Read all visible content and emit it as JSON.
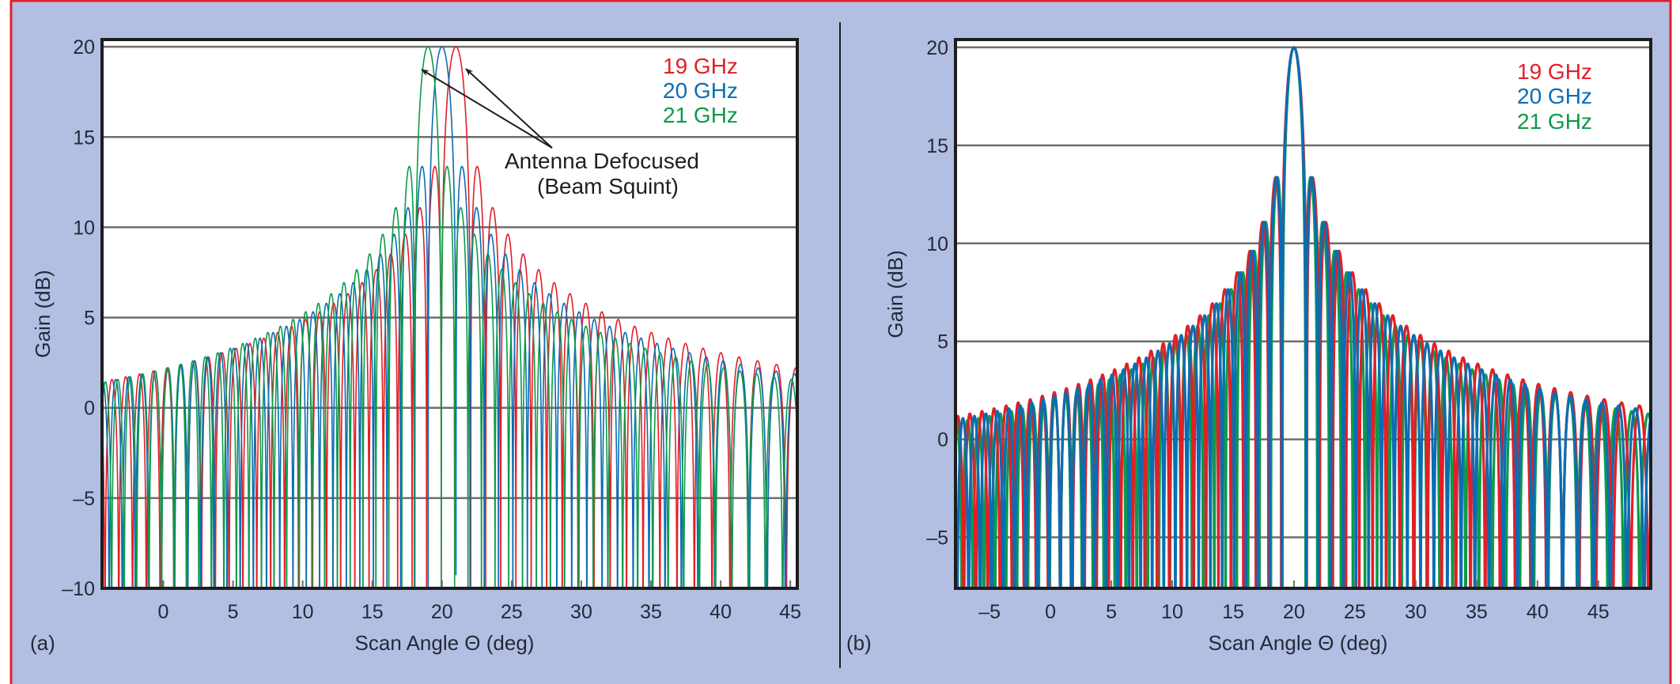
{
  "colors": {
    "background": "#b3bfe2",
    "frame": "#e11f2b",
    "plot_area": "#ffffff",
    "grid": "#6e6e6e",
    "axis": "#1d1d1d"
  },
  "chart_data": [
    {
      "type": "line",
      "panel_label": "(a)",
      "xlabel": "Scan Angle Θ (deg)",
      "ylabel": "Gain (dB)",
      "xlim": [
        -4.4,
        45.5
      ],
      "ylim": [
        -10,
        20.4
      ],
      "x_ticks": [
        {
          "value": 0,
          "label": "0"
        },
        {
          "value": 5,
          "label": "5"
        },
        {
          "value": 10,
          "label": "10"
        },
        {
          "value": 15,
          "label": "15"
        },
        {
          "value": 20,
          "label": "20"
        },
        {
          "value": 25,
          "label": "25"
        },
        {
          "value": 30,
          "label": "30"
        },
        {
          "value": 35,
          "label": "35"
        },
        {
          "value": 40,
          "label": "40"
        },
        {
          "value": 45,
          "label": "45"
        }
      ],
      "y_ticks": [
        {
          "value": -10,
          "label": "–10"
        },
        {
          "value": -5,
          "label": "–5"
        },
        {
          "value": 0,
          "label": "0"
        },
        {
          "value": 5,
          "label": "5"
        },
        {
          "value": 10,
          "label": "10"
        },
        {
          "value": 15,
          "label": "15"
        },
        {
          "value": 20,
          "label": "20"
        }
      ],
      "grid": "horizontal",
      "legend_position": "top-right",
      "series": [
        {
          "name": "19 GHz",
          "color": "#e31e26",
          "peak_angle_deg": 21,
          "peak_gain_db": 20,
          "first_sidelobe_db": 13.3
        },
        {
          "name": "20 GHz",
          "color": "#0a6db4",
          "peak_angle_deg": 20,
          "peak_gain_db": 20,
          "first_sidelobe_db": 13.3
        },
        {
          "name": "21 GHz",
          "color": "#0d9a4a",
          "peak_angle_deg": 19,
          "peak_gain_db": 20,
          "first_sidelobe_db": 13.3
        }
      ],
      "annotations": [
        {
          "lines": [
            "Antenna Defocused",
            "(Beam Squint)"
          ],
          "points_to": [
            "21 GHz main beam",
            "19 GHz main beam"
          ]
        }
      ]
    },
    {
      "type": "line",
      "panel_label": "(b)",
      "xlabel": "Scan Angle Θ (deg)",
      "ylabel": "Gain (dB)",
      "xlim": [
        -7.8,
        49.3
      ],
      "ylim": [
        -7.6,
        20.4
      ],
      "x_ticks": [
        {
          "value": -5,
          "label": "–5"
        },
        {
          "value": 0,
          "label": "0"
        },
        {
          "value": 5,
          "label": "5"
        },
        {
          "value": 10,
          "label": "10"
        },
        {
          "value": 15,
          "label": "15"
        },
        {
          "value": 20,
          "label": "20"
        },
        {
          "value": 25,
          "label": "25"
        },
        {
          "value": 30,
          "label": "30"
        },
        {
          "value": 35,
          "label": "35"
        },
        {
          "value": 40,
          "label": "40"
        },
        {
          "value": 45,
          "label": "45"
        }
      ],
      "y_ticks": [
        {
          "value": -5,
          "label": "–5"
        },
        {
          "value": 0,
          "label": "0"
        },
        {
          "value": 5,
          "label": "5"
        },
        {
          "value": 10,
          "label": "10"
        },
        {
          "value": 15,
          "label": "15"
        },
        {
          "value": 20,
          "label": "20"
        }
      ],
      "grid": "horizontal",
      "legend_position": "top-right",
      "series": [
        {
          "name": "19 GHz",
          "color": "#e31e26",
          "peak_angle_deg": 20,
          "peak_gain_db": 20,
          "first_sidelobe_db": 13.3
        },
        {
          "name": "20 GHz",
          "color": "#0a6db4",
          "peak_angle_deg": 20,
          "peak_gain_db": 20,
          "first_sidelobe_db": 13.3
        },
        {
          "name": "21 GHz",
          "color": "#0d9a4a",
          "peak_angle_deg": 20,
          "peak_gain_db": 20,
          "first_sidelobe_db": 13.3
        }
      ]
    }
  ]
}
